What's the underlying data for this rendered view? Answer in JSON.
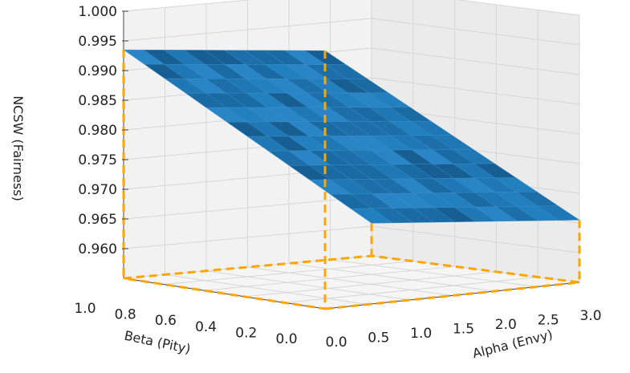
{
  "chart_data": {
    "type": "surface3d",
    "title": "",
    "xlabel": "Alpha (Envy)",
    "ylabel": "Beta (Pity)",
    "zlabel": "NCSW (Fairness)",
    "x_ticks": [
      "0.0",
      "0.5",
      "1.0",
      "1.5",
      "2.0",
      "2.5",
      "3.0"
    ],
    "y_ticks": [
      "0.0",
      "0.2",
      "0.4",
      "0.6",
      "0.8",
      "1.0"
    ],
    "z_ticks": [
      "0.960",
      "0.965",
      "0.970",
      "0.975",
      "0.980",
      "0.985",
      "0.990",
      "0.995",
      "1.000"
    ],
    "xlim": [
      0,
      3
    ],
    "ylim": [
      0,
      1
    ],
    "zlim": [
      0.955,
      1.0
    ],
    "corners": [
      {
        "alpha": 0.0,
        "beta": 0.0,
        "ncsw": 0.9985
      },
      {
        "alpha": 0.0,
        "beta": 1.0,
        "ncsw": 0.9935
      },
      {
        "alpha": 3.0,
        "beta": 0.0,
        "ncsw": 0.9655
      },
      {
        "alpha": 3.0,
        "beta": 1.0,
        "ncsw": 0.9605
      }
    ],
    "surface_color": "#1f77b4",
    "projection_line_color": "#ffa500",
    "grid": true
  }
}
